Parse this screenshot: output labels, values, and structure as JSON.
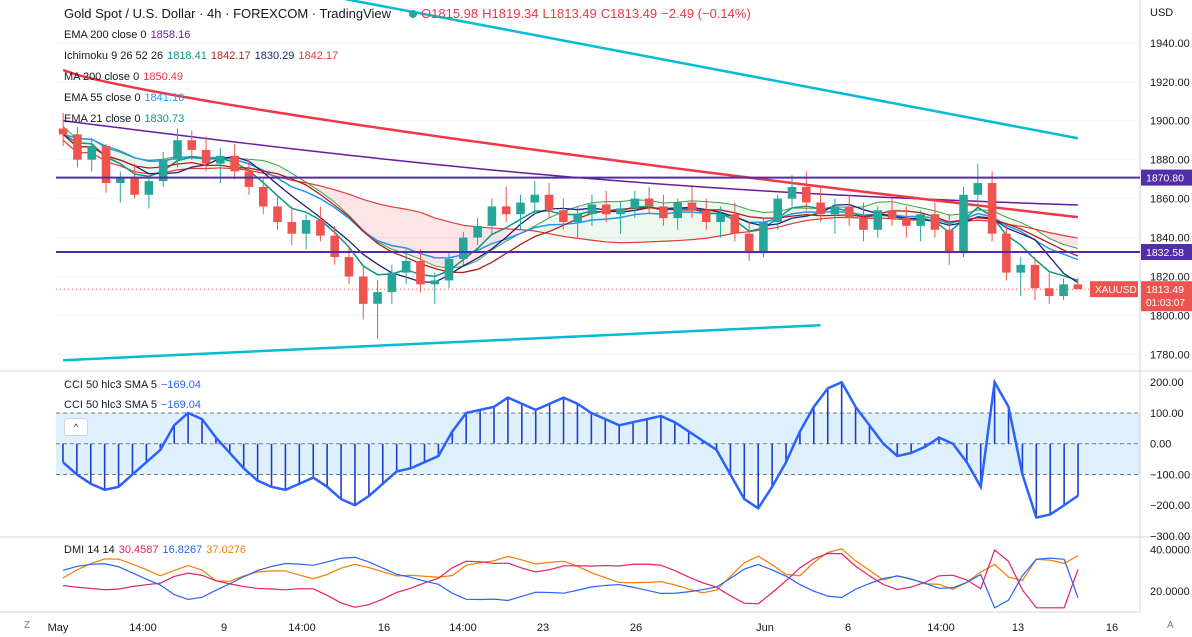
{
  "header": {
    "symbol_title": "Gold Spot / U.S. Dollar · 4h · FOREXCOM · TradingView",
    "ohlc": {
      "o": "O1815.98",
      "h": "H1819.34",
      "l": "L1813.49",
      "c": "C1813.49",
      "chg": "−2.49 (−0.14%)"
    }
  },
  "legends": {
    "ema200": {
      "label": "EMA 200 close 0",
      "value": "1858.16",
      "color": "#6a1b9a"
    },
    "ichimoku": {
      "label": "Ichimoku 9 26 52 26",
      "v1": "1818.41",
      "v2": "1842.17",
      "v3": "1830.29",
      "v4": "1842.17"
    },
    "ma200": {
      "label": "MA 200 close 0",
      "value": "1850.49",
      "color": "#f23645"
    },
    "ema55": {
      "label": "EMA 55 close 0",
      "value": "1841.16",
      "color": "#2196f3"
    },
    "ema21": {
      "label": "EMA 21 close 0",
      "value": "1830.73",
      "color": "#089981"
    },
    "cci_a": {
      "label": "CCI 50 hlc3 SMA 5",
      "value": "−169.04"
    },
    "cci_b": {
      "label": "CCI 50 hlc3 SMA 5",
      "value": "−169.04"
    },
    "dmi": {
      "label": "DMI 14 14",
      "v1": "30.4587",
      "v2": "16.8267",
      "v3": "37.0276"
    }
  },
  "axis": {
    "currency": "USD",
    "price_ticks": [
      "1940.00",
      "1920.00",
      "1900.00",
      "1880.00",
      "1860.00",
      "1840.00",
      "1820.00",
      "1800.00",
      "1780.00"
    ],
    "cci_ticks": [
      "200.00",
      "100.00",
      "0.00",
      "−100.00",
      "−200.00",
      "−300.00"
    ],
    "dmi_ticks": [
      "40.0000",
      "20.0000"
    ],
    "time_ticks": [
      "May",
      "14:00",
      "9",
      "14:00",
      "16",
      "14:00",
      "23",
      "26",
      "Jun",
      "6",
      "14:00",
      "13",
      "16"
    ],
    "level_labels": [
      "1870.80",
      "1832.58"
    ],
    "last_price": "1813.49",
    "symbol_tag": "XAUUSD",
    "countdown": "01:03:07"
  },
  "controls": {
    "collapse": "^",
    "log_btn": "Z",
    "auto_btn": "A"
  },
  "chart_data": {
    "type": "candlestick",
    "symbol": "XAUUSD",
    "timeframe": "4h",
    "ylim": [
      1772,
      1962
    ],
    "horizontal_levels": [
      1870.8,
      1832.58
    ],
    "last_price": 1813.49,
    "candles": [
      [
        1896,
        1904,
        1887,
        1893
      ],
      [
        1893,
        1897,
        1876,
        1880
      ],
      [
        1880,
        1890,
        1874,
        1887
      ],
      [
        1887,
        1888,
        1863,
        1868
      ],
      [
        1868,
        1874,
        1858,
        1871
      ],
      [
        1871,
        1878,
        1860,
        1862
      ],
      [
        1862,
        1872,
        1855,
        1869
      ],
      [
        1869,
        1884,
        1866,
        1880
      ],
      [
        1880,
        1896,
        1876,
        1890
      ],
      [
        1890,
        1895,
        1880,
        1885
      ],
      [
        1885,
        1892,
        1874,
        1878
      ],
      [
        1878,
        1886,
        1868,
        1882
      ],
      [
        1882,
        1888,
        1870,
        1874
      ],
      [
        1874,
        1880,
        1862,
        1866
      ],
      [
        1866,
        1870,
        1852,
        1856
      ],
      [
        1856,
        1862,
        1844,
        1848
      ],
      [
        1848,
        1856,
        1836,
        1842
      ],
      [
        1842,
        1852,
        1834,
        1849
      ],
      [
        1849,
        1856,
        1838,
        1841
      ],
      [
        1841,
        1846,
        1826,
        1830
      ],
      [
        1830,
        1836,
        1816,
        1820
      ],
      [
        1820,
        1825,
        1798,
        1806
      ],
      [
        1806,
        1818,
        1788,
        1812
      ],
      [
        1812,
        1826,
        1806,
        1822
      ],
      [
        1822,
        1834,
        1816,
        1828
      ],
      [
        1828,
        1834,
        1812,
        1816
      ],
      [
        1816,
        1822,
        1806,
        1818
      ],
      [
        1818,
        1832,
        1814,
        1829
      ],
      [
        1829,
        1843,
        1826,
        1840
      ],
      [
        1840,
        1850,
        1836,
        1846
      ],
      [
        1846,
        1860,
        1842,
        1856
      ],
      [
        1856,
        1866,
        1848,
        1852
      ],
      [
        1852,
        1862,
        1844,
        1858
      ],
      [
        1858,
        1869,
        1852,
        1862
      ],
      [
        1862,
        1868,
        1850,
        1854
      ],
      [
        1854,
        1860,
        1844,
        1848
      ],
      [
        1848,
        1856,
        1840,
        1852
      ],
      [
        1852,
        1862,
        1846,
        1857
      ],
      [
        1857,
        1864,
        1848,
        1852
      ],
      [
        1852,
        1858,
        1842,
        1855
      ],
      [
        1855,
        1864,
        1850,
        1860
      ],
      [
        1860,
        1866,
        1852,
        1856
      ],
      [
        1856,
        1862,
        1846,
        1850
      ],
      [
        1850,
        1860,
        1844,
        1858
      ],
      [
        1858,
        1866,
        1850,
        1854
      ],
      [
        1854,
        1860,
        1844,
        1848
      ],
      [
        1848,
        1856,
        1840,
        1852
      ],
      [
        1852,
        1858,
        1838,
        1842
      ],
      [
        1842,
        1848,
        1828,
        1832
      ],
      [
        1832,
        1850,
        1830,
        1848
      ],
      [
        1848,
        1862,
        1844,
        1860
      ],
      [
        1860,
        1872,
        1856,
        1866
      ],
      [
        1866,
        1874,
        1854,
        1858
      ],
      [
        1858,
        1866,
        1848,
        1852
      ],
      [
        1852,
        1860,
        1842,
        1856
      ],
      [
        1856,
        1862,
        1846,
        1850
      ],
      [
        1850,
        1858,
        1838,
        1844
      ],
      [
        1844,
        1856,
        1840,
        1854
      ],
      [
        1854,
        1860,
        1846,
        1850
      ],
      [
        1850,
        1856,
        1840,
        1846
      ],
      [
        1846,
        1854,
        1838,
        1852
      ],
      [
        1852,
        1858,
        1840,
        1844
      ],
      [
        1844,
        1852,
        1826,
        1832
      ],
      [
        1832,
        1866,
        1830,
        1862
      ],
      [
        1862,
        1878,
        1856,
        1868
      ],
      [
        1868,
        1874,
        1838,
        1842
      ],
      [
        1842,
        1846,
        1818,
        1822
      ],
      [
        1822,
        1830,
        1810,
        1826
      ],
      [
        1826,
        1830,
        1808,
        1814
      ],
      [
        1814,
        1822,
        1806,
        1810
      ],
      [
        1810,
        1819,
        1808,
        1816
      ],
      [
        1815.98,
        1819.34,
        1813.49,
        1813.49
      ]
    ],
    "series": [
      {
        "name": "EMA 200 close 0",
        "last": 1858.16
      },
      {
        "name": "MA 200 close 0",
        "last": 1850.49
      },
      {
        "name": "EMA 55 close 0",
        "last": 1841.16
      },
      {
        "name": "EMA 21 close 0",
        "last": 1830.73
      },
      {
        "name": "Ichimoku 9 26 52 26",
        "values": [
          1818.41,
          1842.17,
          1830.29,
          1842.17
        ]
      }
    ],
    "trendlines": [
      {
        "from": [
          0,
          1990
        ],
        "to": [
          71,
          1891
        ],
        "color": "#00bcd4"
      },
      {
        "from": [
          0,
          1777
        ],
        "to": [
          53,
          1795
        ],
        "color": "#00bcd4"
      }
    ],
    "cci": {
      "label": "CCI 50 hlc3 SMA 5",
      "last": -169.04,
      "ylim": [
        -300,
        230
      ],
      "band": [
        -100,
        100
      ],
      "values": [
        -60,
        -100,
        -130,
        -150,
        -140,
        -100,
        -60,
        -20,
        60,
        100,
        80,
        20,
        -30,
        -80,
        -120,
        -140,
        -150,
        -130,
        -110,
        -140,
        -180,
        -200,
        -170,
        -130,
        -90,
        -80,
        -60,
        -40,
        40,
        100,
        110,
        120,
        150,
        130,
        110,
        130,
        150,
        130,
        100,
        80,
        60,
        70,
        80,
        90,
        70,
        40,
        10,
        -20,
        -100,
        -180,
        -210,
        -140,
        -60,
        40,
        120,
        180,
        200,
        120,
        60,
        0,
        -40,
        -30,
        -10,
        20,
        0,
        -60,
        -140,
        200,
        120,
        -100,
        -240,
        -230,
        -200,
        -169
      ]
    },
    "dmi": {
      "label": "DMI 14 14",
      "values": [
        30.4587,
        16.8267,
        37.0276
      ],
      "ylim": [
        10,
        45
      ]
    }
  }
}
